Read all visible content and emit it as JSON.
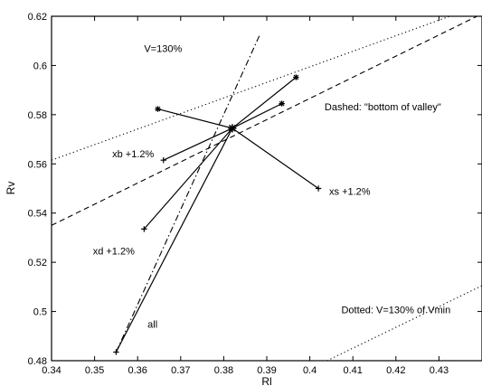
{
  "chart_data": {
    "type": "line",
    "xlabel": "Rl",
    "ylabel": "Rv",
    "xlim": [
      0.34,
      0.44
    ],
    "ylim": [
      0.48,
      0.62
    ],
    "xticks": [
      "0.34",
      "0.35",
      "0.36",
      "0.37",
      "0.38",
      "0.39",
      "0.4",
      "0.41",
      "0.42",
      "0.43"
    ],
    "xtick_values": [
      0.34,
      0.35,
      0.36,
      0.37,
      0.38,
      0.39,
      0.4,
      0.41,
      0.42,
      0.43
    ],
    "yticks": [
      "0.48",
      "0.5",
      "0.52",
      "0.54",
      "0.56",
      "0.58",
      "0.6",
      "0.62"
    ],
    "ytick_values": [
      0.48,
      0.5,
      0.52,
      0.54,
      0.56,
      0.58,
      0.6,
      0.62
    ],
    "grid": false,
    "center": {
      "x": 0.382,
      "y": 0.5745
    },
    "lines": [
      {
        "style": "dotted",
        "points": [
          [
            0.34,
            0.5615
          ],
          [
            0.4325,
            0.62
          ]
        ]
      },
      {
        "style": "dotted",
        "points": [
          [
            0.404,
            0.48
          ],
          [
            0.44,
            0.5105
          ]
        ]
      },
      {
        "style": "dashed",
        "points": [
          [
            0.34,
            0.535
          ],
          [
            0.44,
            0.621
          ]
        ]
      },
      {
        "style": "dashdot",
        "points": [
          [
            0.355,
            0.4835
          ],
          [
            0.3885,
            0.613
          ]
        ]
      }
    ],
    "segments": [
      {
        "x": 0.3647,
        "y": 0.5823,
        "marker": "*"
      },
      {
        "x": 0.3968,
        "y": 0.5952,
        "marker": "*"
      },
      {
        "x": 0.3935,
        "y": 0.5845,
        "marker": "*"
      },
      {
        "x": 0.402,
        "y": 0.55,
        "marker": "+"
      },
      {
        "x": 0.3615,
        "y": 0.5335,
        "marker": "+"
      },
      {
        "x": 0.366,
        "y": 0.5615,
        "marker": "+"
      },
      {
        "x": 0.355,
        "y": 0.4835,
        "marker": "+"
      }
    ],
    "annotations": [
      {
        "text": "V=130%",
        "x": 0.3615,
        "y": 0.6055,
        "anchor": "start"
      },
      {
        "text": "Dashed: \"bottom of valley\"",
        "x": 0.4305,
        "y": 0.5817,
        "anchor": "end"
      },
      {
        "text": "xb +1.2%",
        "x": 0.3541,
        "y": 0.5627,
        "anchor": "start"
      },
      {
        "text": "xs +1.2%",
        "x": 0.4045,
        "y": 0.5475,
        "anchor": "start"
      },
      {
        "text": "xd +1.2%",
        "x": 0.3496,
        "y": 0.5232,
        "anchor": "start"
      },
      {
        "text": "all",
        "x": 0.3623,
        "y": 0.4935,
        "anchor": "start"
      },
      {
        "text": "Dotted: V=130% of Vmin",
        "x": 0.4327,
        "y": 0.4993,
        "anchor": "end"
      }
    ]
  }
}
